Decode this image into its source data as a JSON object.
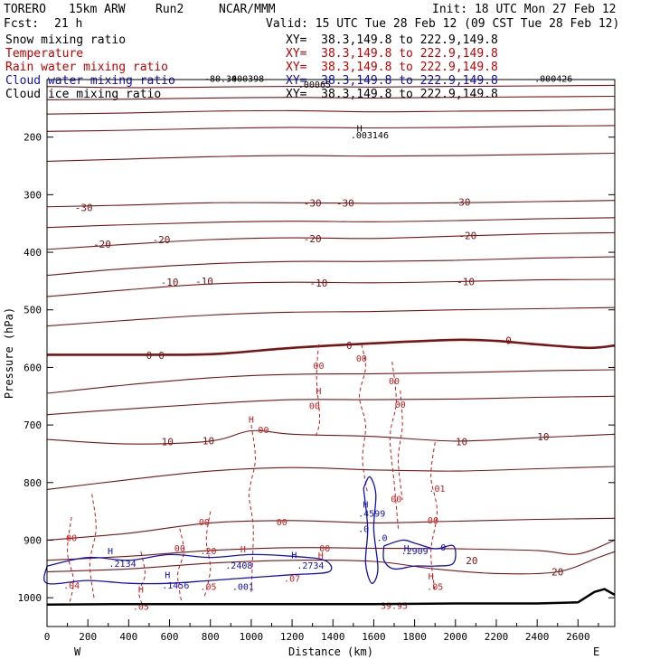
{
  "header": {
    "model": "TORERO",
    "resolution": "15km ARW",
    "run": "Run2",
    "org": "NCAR/MMM",
    "init": "Init: 18 UTC Mon 27 Feb 12",
    "fcst_label": "Fcst:",
    "fcst_value": "21 h",
    "valid": "Valid: 15 UTC Tue 28 Feb 12 (09 CST Tue 28 Feb 12)"
  },
  "legend": [
    {
      "label": "Snow mixing ratio",
      "xy": "XY=  38.3,149.8 to 222.9,149.8",
      "color": "#000000"
    },
    {
      "label": "Temperature",
      "xy": "XY=  38.3,149.8 to 222.9,149.8",
      "color": "#c40000"
    },
    {
      "label": "Rain water mixing ratio",
      "xy": "XY=  38.3,149.8 to 222.9,149.8",
      "color": "#c40000"
    },
    {
      "label": "Cloud water mixing ratio",
      "xy": "XY=  38.3,149.8 to 222.9,149.8",
      "color": "#1010c0"
    },
    {
      "label": "Cloud ice mixing ratio",
      "xy": "XY=  38.3,149.8 to 222.9,149.8",
      "color": "#000000"
    }
  ],
  "chart_data": {
    "type": "line",
    "xlabel": "Distance (km)",
    "ylabel": "Pressure (hPa)",
    "xlim": [
      0,
      2780
    ],
    "ylim": [
      1050,
      100
    ],
    "x_ticks": [
      0,
      200,
      400,
      600,
      800,
      1000,
      1200,
      1400,
      1600,
      1800,
      2000,
      2200,
      2400,
      2600
    ],
    "y_ticks": [
      200,
      300,
      400,
      500,
      600,
      700,
      800,
      900,
      1000
    ],
    "x_end_labels": [
      "W",
      "E"
    ],
    "temperature_isotherms": [
      {
        "name": "T-40a",
        "x": [
          0,
          400,
          800,
          1200,
          1600,
          2000,
          2400,
          2780
        ],
        "y": [
          112,
          114,
          113,
          112,
          113,
          112,
          111,
          110
        ]
      },
      {
        "name": "T-40b",
        "x": [
          0,
          400,
          800,
          1200,
          1600,
          2000,
          2400,
          2780
        ],
        "y": [
          135,
          134,
          132,
          131,
          132,
          131,
          130,
          129
        ]
      },
      {
        "name": "T-40c",
        "x": [
          0,
          400,
          800,
          1200,
          1600,
          2000,
          2400,
          2780
        ],
        "y": [
          160,
          158,
          155,
          154,
          156,
          155,
          154,
          152
        ]
      },
      {
        "name": "T-40d",
        "x": [
          0,
          400,
          800,
          1200,
          1600,
          2000,
          2400,
          2780
        ],
        "y": [
          190,
          188,
          185,
          183,
          184,
          183,
          181,
          180
        ]
      },
      {
        "name": "T-35",
        "x": [
          0,
          400,
          800,
          1200,
          1600,
          2000,
          2400,
          2780
        ],
        "y": [
          242,
          238,
          234,
          232,
          233,
          232,
          230,
          228
        ]
      },
      {
        "name": "T-30",
        "x": [
          0,
          400,
          800,
          1200,
          1600,
          2000,
          2400,
          2780
        ],
        "y": [
          321,
          318,
          314,
          314,
          315,
          314,
          312,
          310
        ]
      },
      {
        "name": "T-25",
        "x": [
          0,
          400,
          800,
          1200,
          1600,
          2000,
          2400,
          2780
        ],
        "y": [
          357,
          352,
          348,
          346,
          347,
          345,
          342,
          340
        ]
      },
      {
        "name": "T-20",
        "x": [
          0,
          400,
          800,
          1200,
          1600,
          2000,
          2400,
          2780
        ],
        "y": [
          395,
          386,
          378,
          375,
          376,
          372,
          368,
          366
        ]
      },
      {
        "name": "T-15",
        "x": [
          0,
          400,
          800,
          1200,
          1600,
          2000,
          2400,
          2780
        ],
        "y": [
          440,
          428,
          420,
          416,
          416,
          414,
          410,
          408
        ]
      },
      {
        "name": "T-10",
        "x": [
          0,
          400,
          800,
          1200,
          1600,
          2000,
          2400,
          2780
        ],
        "y": [
          477,
          465,
          455,
          452,
          453,
          451,
          448,
          447
        ]
      },
      {
        "name": "T-5",
        "x": [
          0,
          400,
          800,
          1200,
          1600,
          2000,
          2400,
          2780
        ],
        "y": [
          528,
          518,
          509,
          504,
          503,
          500,
          498,
          496
        ]
      },
      {
        "name": "T0",
        "x": [
          0,
          400,
          800,
          1200,
          1600,
          2000,
          2200,
          2400,
          2650,
          2780
        ],
        "y": [
          578,
          578,
          577,
          566,
          558,
          552,
          554,
          560,
          566,
          562
        ]
      },
      {
        "name": "T5",
        "x": [
          0,
          400,
          800,
          1200,
          1600,
          2000,
          2400,
          2780
        ],
        "y": [
          645,
          630,
          618,
          612,
          611,
          609,
          606,
          604
        ]
      },
      {
        "name": "T8",
        "x": [
          0,
          400,
          800,
          1200,
          1600,
          2000,
          2400,
          2780
        ],
        "y": [
          682,
          672,
          663,
          656,
          656,
          655,
          652,
          650
        ]
      },
      {
        "name": "T10",
        "x": [
          0,
          400,
          800,
          1000,
          1200,
          1600,
          2000,
          2400,
          2780
        ],
        "y": [
          725,
          733,
          728,
          710,
          716,
          720,
          728,
          722,
          716
        ]
      },
      {
        "name": "T13",
        "x": [
          0,
          400,
          800,
          1200,
          1600,
          2000,
          2400,
          2780
        ],
        "y": [
          812,
          795,
          780,
          774,
          778,
          780,
          776,
          772
        ]
      },
      {
        "name": "T15",
        "x": [
          0,
          400,
          800,
          1200,
          1600,
          2000,
          2400,
          2780
        ],
        "y": [
          900,
          888,
          870,
          866,
          870,
          867,
          864,
          862
        ]
      },
      {
        "name": "T18",
        "x": [
          0,
          400,
          800,
          1200,
          1600,
          2000,
          2400,
          2600,
          2780
        ],
        "y": [
          935,
          928,
          918,
          913,
          914,
          915,
          918,
          924,
          900
        ]
      },
      {
        "name": "T20",
        "x": [
          0,
          400,
          800,
          1200,
          1600,
          1900,
          2200,
          2500,
          2700,
          2780
        ],
        "y": [
          955,
          950,
          940,
          935,
          937,
          950,
          958,
          955,
          930,
          920
        ]
      }
    ],
    "isotherm_labels": [
      {
        "text": "-30",
        "x": 180,
        "y": 322
      },
      {
        "text": "-30",
        "x": 1300,
        "y": 314
      },
      {
        "text": "-30",
        "x": 1460,
        "y": 314
      },
      {
        "text": "-30",
        "x": 2030,
        "y": 313
      },
      {
        "text": "-20",
        "x": 270,
        "y": 386
      },
      {
        "text": "-20",
        "x": 560,
        "y": 378
      },
      {
        "text": "-20",
        "x": 1300,
        "y": 376
      },
      {
        "text": "-20",
        "x": 2060,
        "y": 371
      },
      {
        "text": "-10",
        "x": 600,
        "y": 452
      },
      {
        "text": "-10",
        "x": 770,
        "y": 450
      },
      {
        "text": "-10",
        "x": 1330,
        "y": 453
      },
      {
        "text": "-10",
        "x": 2050,
        "y": 451
      },
      {
        "text": "0",
        "x": 500,
        "y": 579
      },
      {
        "text": "0",
        "x": 560,
        "y": 579
      },
      {
        "text": "0",
        "x": 1480,
        "y": 562
      },
      {
        "text": "0",
        "x": 2260,
        "y": 553
      },
      {
        "text": "10",
        "x": 590,
        "y": 729
      },
      {
        "text": "10",
        "x": 790,
        "y": 727
      },
      {
        "text": "10",
        "x": 2030,
        "y": 729
      },
      {
        "text": "10",
        "x": 2430,
        "y": 720
      },
      {
        "text": "20",
        "x": 2080,
        "y": 935
      },
      {
        "text": "20",
        "x": 2500,
        "y": 955
      }
    ],
    "snow_labels": [
      {
        "text": "-80.34",
        "x": 850,
        "y": 98
      },
      {
        "text": ".000398",
        "x": 970,
        "y": 98
      },
      {
        "text": ".00065",
        "x": 1310,
        "y": 108
      },
      {
        "text": ".000426",
        "x": 2480,
        "y": 98
      },
      {
        "text": "H",
        "x": 1530,
        "y": 184
      },
      {
        "text": ".003146",
        "x": 1580,
        "y": 196
      }
    ],
    "rain_labels": [
      {
        "text": "00",
        "x": 1330,
        "y": 596
      },
      {
        "text": "H",
        "x": 1330,
        "y": 640
      },
      {
        "text": "00",
        "x": 1310,
        "y": 666
      },
      {
        "text": "00",
        "x": 1540,
        "y": 584
      },
      {
        "text": "H",
        "x": 1000,
        "y": 690
      },
      {
        "text": "00",
        "x": 1060,
        "y": 708
      },
      {
        "text": "00",
        "x": 1700,
        "y": 623
      },
      {
        "text": "00",
        "x": 1730,
        "y": 664
      },
      {
        "text": "00",
        "x": 1710,
        "y": 828
      },
      {
        "text": ".01",
        "x": 1910,
        "y": 810
      },
      {
        "text": "00",
        "x": 1890,
        "y": 865
      },
      {
        "text": "00",
        "x": 1150,
        "y": 868
      },
      {
        "text": "00",
        "x": 770,
        "y": 868
      },
      {
        "text": "00",
        "x": 120,
        "y": 895
      },
      {
        "text": "00",
        "x": 650,
        "y": 913
      },
      {
        "text": "00",
        "x": 1360,
        "y": 913
      },
      {
        "text": ".20",
        "x": 790,
        "y": 918
      },
      {
        "text": "H",
        "x": 960,
        "y": 915
      },
      {
        "text": "H",
        "x": 1340,
        "y": 926
      },
      {
        "text": ".07",
        "x": 1200,
        "y": 966
      },
      {
        "text": ".04",
        "x": 120,
        "y": 978
      },
      {
        "text": "H",
        "x": 460,
        "y": 985
      },
      {
        "text": ".05",
        "x": 790,
        "y": 980
      },
      {
        "text": ".05",
        "x": 460,
        "y": 1015
      },
      {
        "text": ".05",
        "x": 1900,
        "y": 980
      },
      {
        "text": "H",
        "x": 1880,
        "y": 962
      },
      {
        "text": "39.95",
        "x": 1700,
        "y": 1013
      }
    ],
    "cloud_water_labels": [
      {
        "text": "H",
        "x": 310,
        "y": 918
      },
      {
        "text": ".2134",
        "x": 370,
        "y": 940
      },
      {
        "text": "H",
        "x": 590,
        "y": 960
      },
      {
        "text": ".1456",
        "x": 630,
        "y": 978
      },
      {
        "text": ".001",
        "x": 960,
        "y": 980
      },
      {
        "text": ".2408",
        "x": 940,
        "y": 943
      },
      {
        "text": ".2734",
        "x": 1290,
        "y": 943
      },
      {
        "text": "H",
        "x": 1210,
        "y": 925
      },
      {
        "text": "H",
        "x": 1560,
        "y": 837
      },
      {
        "text": ".4599",
        "x": 1590,
        "y": 853
      },
      {
        "text": ".0",
        "x": 1550,
        "y": 880
      },
      {
        "text": "H",
        "x": 1760,
        "y": 913
      },
      {
        "text": ".2909",
        "x": 1800,
        "y": 918
      },
      {
        "text": ".0",
        "x": 1640,
        "y": 895
      },
      {
        "text": "0",
        "x": 1940,
        "y": 912
      }
    ]
  }
}
